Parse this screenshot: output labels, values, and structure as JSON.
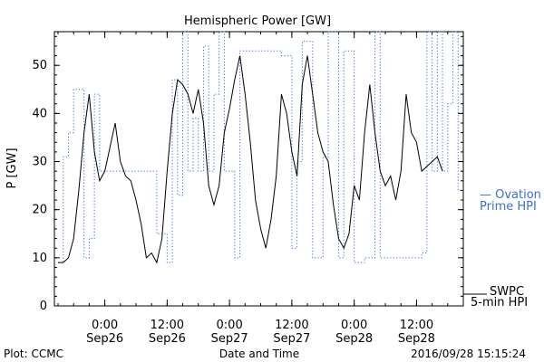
{
  "chart_data": {
    "type": "line",
    "title": "Hemispheric Power [GW]",
    "xlabel": "Date and Time",
    "ylabel": "P [GW]",
    "ylim": [
      0,
      57
    ],
    "xlim_hours_note": "hours relative to Sep26 00:00",
    "yticks": [
      0,
      10,
      20,
      30,
      40,
      50
    ],
    "xticks": [
      {
        "top": "0:00",
        "bottom": "Sep26"
      },
      {
        "top": "12:00",
        "bottom": "Sep26"
      },
      {
        "top": "0:00",
        "bottom": "Sep27"
      },
      {
        "top": "12:00",
        "bottom": "Sep27"
      },
      {
        "top": "0:00",
        "bottom": "Sep28"
      },
      {
        "top": "12:00",
        "bottom": "Sep28"
      }
    ],
    "series": [
      {
        "name": "SWPC 5-min HPI",
        "color": "#000000",
        "style": "solid",
        "x": [
          -9,
          -8,
          -7,
          -6,
          -5,
          -4,
          -3,
          -2,
          -1,
          0,
          1,
          2,
          3,
          4,
          5,
          6,
          7,
          8,
          9,
          10,
          11,
          12,
          13,
          14,
          15,
          16,
          17,
          18,
          19,
          20,
          21,
          22,
          23,
          24,
          25,
          26,
          27,
          28,
          29,
          30,
          31,
          32,
          33,
          34,
          35,
          36,
          37,
          38,
          39,
          40,
          41,
          42,
          43,
          44,
          45,
          46,
          47,
          48,
          49,
          50,
          51,
          52,
          53,
          54,
          55,
          56,
          57,
          58,
          59,
          60,
          61,
          62,
          63,
          64,
          65
        ],
        "y": [
          9,
          9,
          10,
          14,
          24,
          36,
          44,
          32,
          26,
          28,
          33,
          38,
          30,
          27,
          26,
          22,
          17,
          10,
          11,
          9,
          14,
          28,
          40,
          47,
          46,
          44,
          40,
          45,
          38,
          25,
          21,
          25,
          36,
          41,
          47,
          52,
          44,
          34,
          22,
          16,
          12,
          18,
          27,
          44,
          40,
          32,
          27,
          46,
          52,
          44,
          36,
          32,
          30,
          21,
          14,
          12,
          15,
          25,
          22,
          36,
          46,
          36,
          28,
          25,
          27,
          22,
          28,
          44,
          36,
          34,
          28,
          29,
          30,
          31,
          28
        ],
        "note": "y values are approximate readings of the rapidly fluctuating SWPC curve"
      },
      {
        "name": "Ovation Prime HPI",
        "color": "#3a6fd8",
        "style": "dotted",
        "steps": [
          [
            -9,
            9
          ],
          [
            -8,
            31
          ],
          [
            -7,
            36
          ],
          [
            -6,
            45
          ],
          [
            -4,
            10
          ],
          [
            -3,
            14
          ],
          [
            -2,
            44
          ],
          [
            -1,
            28
          ],
          [
            5,
            28
          ],
          [
            10,
            15
          ],
          [
            12,
            9
          ],
          [
            13,
            47
          ],
          [
            14,
            23
          ],
          [
            15,
            57
          ],
          [
            16,
            28
          ],
          [
            17,
            39
          ],
          [
            18,
            28
          ],
          [
            19,
            54
          ],
          [
            20,
            28
          ],
          [
            21,
            44
          ],
          [
            22,
            57
          ],
          [
            23,
            28
          ],
          [
            25,
            10
          ],
          [
            26,
            53
          ],
          [
            34,
            52
          ],
          [
            36,
            12
          ],
          [
            37,
            30
          ],
          [
            38,
            55
          ],
          [
            40,
            10
          ],
          [
            42,
            31
          ],
          [
            43,
            57
          ],
          [
            45,
            10
          ],
          [
            46,
            53
          ],
          [
            48,
            9
          ],
          [
            50,
            10
          ],
          [
            52,
            57
          ],
          [
            53,
            10
          ],
          [
            56,
            10
          ],
          [
            59,
            10
          ],
          [
            61,
            11
          ],
          [
            62,
            57
          ],
          [
            63,
            28
          ],
          [
            64,
            57
          ],
          [
            65,
            28
          ],
          [
            66,
            42
          ],
          [
            67,
            57
          ],
          [
            68,
            24
          ],
          [
            69,
            24
          ]
        ]
      }
    ],
    "legend": [
      {
        "label_line1": "— Ovation",
        "label_line2": "Prime HPI",
        "color": "#3a6fd8"
      },
      {
        "label_line1": "SWPC",
        "label_line2": "5-min HPI",
        "color": "#000000"
      }
    ]
  },
  "footer": {
    "plot_credit": "Plot: CCMC",
    "xlabel": "Date and Time",
    "timestamp": "2016/09/28 15:15:24"
  }
}
